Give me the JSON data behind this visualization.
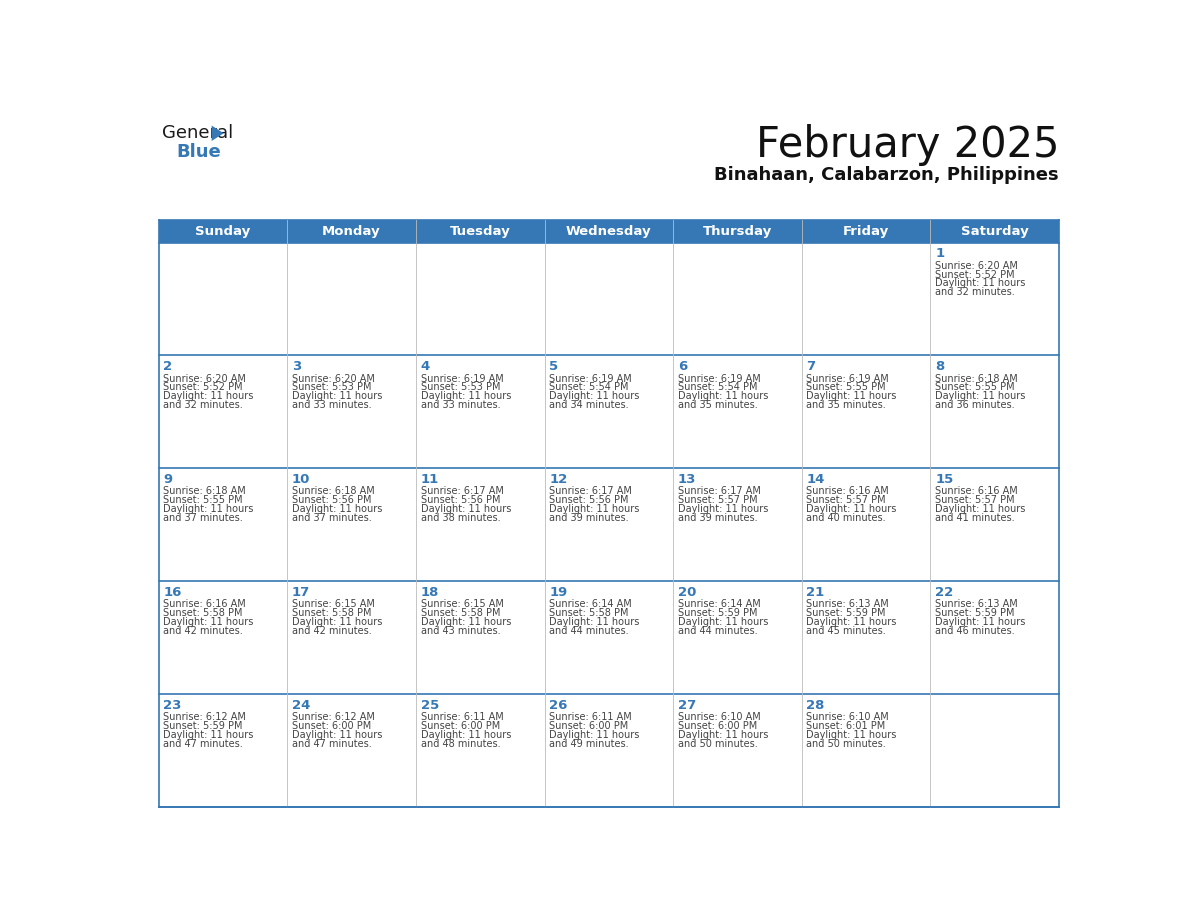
{
  "title": "February 2025",
  "subtitle": "Binahaan, Calabarzon, Philippines",
  "header_color": "#3578b5",
  "header_text_color": "#ffffff",
  "day_names": [
    "Sunday",
    "Monday",
    "Tuesday",
    "Wednesday",
    "Thursday",
    "Friday",
    "Saturday"
  ],
  "cell_bg_color": "#ffffff",
  "cell_alt_bg_color": "#eef2f7",
  "border_color": "#3578b5",
  "day_num_color": "#3578b5",
  "text_color": "#444444",
  "grid_line_color": "#aaaaaa",
  "calendar_data": [
    [
      null,
      null,
      null,
      null,
      null,
      null,
      {
        "day": 1,
        "sunrise": "6:20 AM",
        "sunset": "5:52 PM",
        "daylight": "11 hours",
        "daylight2": "and 32 minutes."
      }
    ],
    [
      {
        "day": 2,
        "sunrise": "6:20 AM",
        "sunset": "5:52 PM",
        "daylight": "11 hours",
        "daylight2": "and 32 minutes."
      },
      {
        "day": 3,
        "sunrise": "6:20 AM",
        "sunset": "5:53 PM",
        "daylight": "11 hours",
        "daylight2": "and 33 minutes."
      },
      {
        "day": 4,
        "sunrise": "6:19 AM",
        "sunset": "5:53 PM",
        "daylight": "11 hours",
        "daylight2": "and 33 minutes."
      },
      {
        "day": 5,
        "sunrise": "6:19 AM",
        "sunset": "5:54 PM",
        "daylight": "11 hours",
        "daylight2": "and 34 minutes."
      },
      {
        "day": 6,
        "sunrise": "6:19 AM",
        "sunset": "5:54 PM",
        "daylight": "11 hours",
        "daylight2": "and 35 minutes."
      },
      {
        "day": 7,
        "sunrise": "6:19 AM",
        "sunset": "5:55 PM",
        "daylight": "11 hours",
        "daylight2": "and 35 minutes."
      },
      {
        "day": 8,
        "sunrise": "6:18 AM",
        "sunset": "5:55 PM",
        "daylight": "11 hours",
        "daylight2": "and 36 minutes."
      }
    ],
    [
      {
        "day": 9,
        "sunrise": "6:18 AM",
        "sunset": "5:55 PM",
        "daylight": "11 hours",
        "daylight2": "and 37 minutes."
      },
      {
        "day": 10,
        "sunrise": "6:18 AM",
        "sunset": "5:56 PM",
        "daylight": "11 hours",
        "daylight2": "and 37 minutes."
      },
      {
        "day": 11,
        "sunrise": "6:17 AM",
        "sunset": "5:56 PM",
        "daylight": "11 hours",
        "daylight2": "and 38 minutes."
      },
      {
        "day": 12,
        "sunrise": "6:17 AM",
        "sunset": "5:56 PM",
        "daylight": "11 hours",
        "daylight2": "and 39 minutes."
      },
      {
        "day": 13,
        "sunrise": "6:17 AM",
        "sunset": "5:57 PM",
        "daylight": "11 hours",
        "daylight2": "and 39 minutes."
      },
      {
        "day": 14,
        "sunrise": "6:16 AM",
        "sunset": "5:57 PM",
        "daylight": "11 hours",
        "daylight2": "and 40 minutes."
      },
      {
        "day": 15,
        "sunrise": "6:16 AM",
        "sunset": "5:57 PM",
        "daylight": "11 hours",
        "daylight2": "and 41 minutes."
      }
    ],
    [
      {
        "day": 16,
        "sunrise": "6:16 AM",
        "sunset": "5:58 PM",
        "daylight": "11 hours",
        "daylight2": "and 42 minutes."
      },
      {
        "day": 17,
        "sunrise": "6:15 AM",
        "sunset": "5:58 PM",
        "daylight": "11 hours",
        "daylight2": "and 42 minutes."
      },
      {
        "day": 18,
        "sunrise": "6:15 AM",
        "sunset": "5:58 PM",
        "daylight": "11 hours",
        "daylight2": "and 43 minutes."
      },
      {
        "day": 19,
        "sunrise": "6:14 AM",
        "sunset": "5:58 PM",
        "daylight": "11 hours",
        "daylight2": "and 44 minutes."
      },
      {
        "day": 20,
        "sunrise": "6:14 AM",
        "sunset": "5:59 PM",
        "daylight": "11 hours",
        "daylight2": "and 44 minutes."
      },
      {
        "day": 21,
        "sunrise": "6:13 AM",
        "sunset": "5:59 PM",
        "daylight": "11 hours",
        "daylight2": "and 45 minutes."
      },
      {
        "day": 22,
        "sunrise": "6:13 AM",
        "sunset": "5:59 PM",
        "daylight": "11 hours",
        "daylight2": "and 46 minutes."
      }
    ],
    [
      {
        "day": 23,
        "sunrise": "6:12 AM",
        "sunset": "5:59 PM",
        "daylight": "11 hours",
        "daylight2": "and 47 minutes."
      },
      {
        "day": 24,
        "sunrise": "6:12 AM",
        "sunset": "6:00 PM",
        "daylight": "11 hours",
        "daylight2": "and 47 minutes."
      },
      {
        "day": 25,
        "sunrise": "6:11 AM",
        "sunset": "6:00 PM",
        "daylight": "11 hours",
        "daylight2": "and 48 minutes."
      },
      {
        "day": 26,
        "sunrise": "6:11 AM",
        "sunset": "6:00 PM",
        "daylight": "11 hours",
        "daylight2": "and 49 minutes."
      },
      {
        "day": 27,
        "sunrise": "6:10 AM",
        "sunset": "6:00 PM",
        "daylight": "11 hours",
        "daylight2": "and 50 minutes."
      },
      {
        "day": 28,
        "sunrise": "6:10 AM",
        "sunset": "6:01 PM",
        "daylight": "11 hours",
        "daylight2": "and 50 minutes."
      },
      null
    ]
  ]
}
